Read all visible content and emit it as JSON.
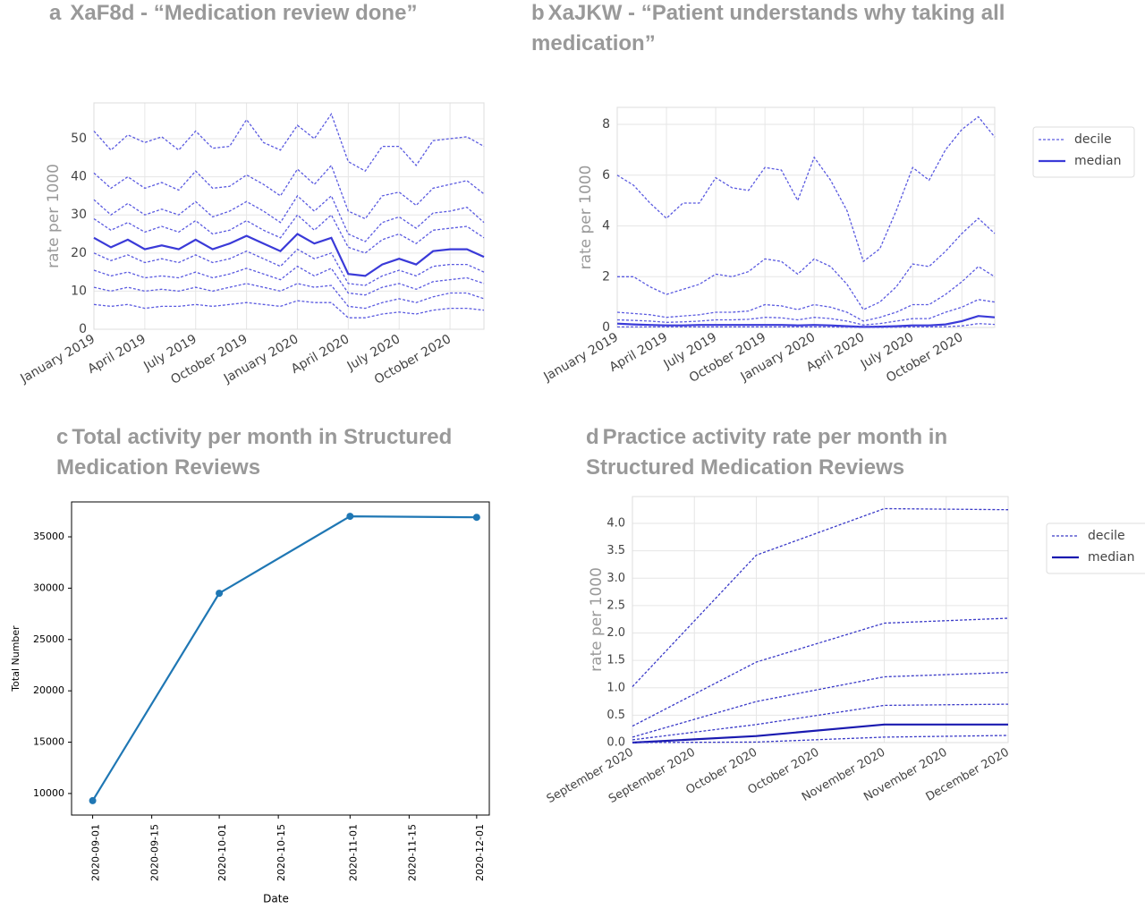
{
  "chart_data": [
    {
      "type": "line",
      "panel": "a",
      "title": "XaF8d - “Medication review done”",
      "ylabel": "rate per 1000",
      "categories": [
        "January 2019",
        null,
        null,
        "April 2019",
        null,
        null,
        "July 2019",
        null,
        null,
        "October 2019",
        null,
        null,
        "January 2020",
        null,
        null,
        "April 2020",
        null,
        null,
        "July 2020",
        null,
        null,
        "October 2020",
        null,
        null
      ],
      "ylim": [
        0,
        59.4
      ],
      "yticks": [
        0,
        10,
        20,
        30,
        40,
        50
      ],
      "grid": true,
      "series": [
        {
          "color": "#5a5ae0",
          "linestyle": "dashed",
          "values": [
            52,
            47,
            51,
            49,
            50.5,
            47,
            52,
            47.5,
            48,
            55,
            49,
            47,
            53.5,
            50,
            56.5,
            44,
            41.5,
            48,
            48,
            43,
            49.5,
            50,
            50.5,
            48
          ]
        },
        {
          "color": "#5a5ae0",
          "linestyle": "dashed",
          "values": [
            41,
            37,
            40,
            37,
            38.5,
            36.5,
            41.5,
            37,
            37.5,
            40.5,
            38,
            35,
            42,
            38,
            43,
            31,
            29,
            35,
            36,
            32.5,
            37,
            38,
            39,
            35.5
          ]
        },
        {
          "color": "#5a5ae0",
          "linestyle": "dashed",
          "values": [
            34,
            30,
            33,
            30,
            31.5,
            30,
            33.5,
            29.5,
            31,
            33.5,
            31,
            28,
            35,
            31,
            35,
            25,
            23,
            28,
            29.5,
            26.5,
            30.5,
            31,
            32,
            28
          ]
        },
        {
          "color": "#5a5ae0",
          "linestyle": "dashed",
          "values": [
            29,
            26,
            28,
            25.5,
            27,
            25.5,
            28.5,
            25,
            26,
            28.5,
            26,
            24,
            30,
            26,
            30,
            21.5,
            20,
            23.5,
            25,
            22.5,
            26,
            26.5,
            27,
            24
          ]
        },
        {
          "color": "#3a3ad8",
          "linestyle": "solid",
          "values": [
            24,
            21.5,
            23.5,
            21,
            22,
            21,
            23.5,
            21,
            22.5,
            24.5,
            22.5,
            20.5,
            25,
            22.5,
            24,
            14.5,
            14,
            17,
            18.5,
            17,
            20.5,
            21,
            21,
            19
          ]
        },
        {
          "color": "#5a5ae0",
          "linestyle": "dashed",
          "values": [
            20,
            18,
            19.5,
            17.5,
            18.5,
            17.5,
            19.5,
            17.5,
            18.5,
            20.5,
            18.5,
            16.5,
            21,
            18.5,
            20,
            12,
            11.5,
            14,
            15.5,
            14,
            16.5,
            17,
            17,
            15
          ]
        },
        {
          "color": "#5a5ae0",
          "linestyle": "dashed",
          "values": [
            15.5,
            14,
            15,
            13.5,
            14,
            13.5,
            15,
            13.5,
            14.5,
            16,
            14.5,
            13,
            16.5,
            14,
            16,
            9.5,
            9,
            11,
            12,
            10.5,
            12.5,
            13,
            13.5,
            12
          ]
        },
        {
          "color": "#5a5ae0",
          "linestyle": "dashed",
          "values": [
            11,
            10,
            11,
            10,
            10.5,
            10,
            11,
            10,
            11,
            12,
            11,
            10,
            12,
            11,
            11.5,
            6,
            5.5,
            7,
            8,
            7,
            8.5,
            9.5,
            9.5,
            8
          ]
        },
        {
          "color": "#5a5ae0",
          "linestyle": "dashed",
          "values": [
            6.5,
            6,
            6.5,
            5.5,
            6,
            6,
            6.5,
            6,
            6.5,
            7,
            6.5,
            6,
            7.5,
            7,
            7,
            3,
            3,
            4,
            4.5,
            4,
            5,
            5.5,
            5.5,
            5
          ]
        }
      ]
    },
    {
      "type": "line",
      "panel": "b",
      "title": "XaJKW - “Patient understands why taking all medication”",
      "ylabel": "rate per 1000",
      "categories": [
        "January 2019",
        null,
        null,
        "April 2019",
        null,
        null,
        "July 2019",
        null,
        null,
        "October 2019",
        null,
        null,
        "January 2020",
        null,
        null,
        "April 2020",
        null,
        null,
        "July 2020",
        null,
        null,
        "October 2020",
        null,
        null
      ],
      "ylim": [
        0,
        8.67
      ],
      "yticks": [
        0,
        2,
        4,
        6,
        8
      ],
      "grid": true,
      "legend": "right",
      "series": [
        {
          "name": "decile",
          "color": "#5a5ae0",
          "linestyle": "dashed",
          "values": [
            6,
            5.6,
            4.9,
            4.3,
            4.9,
            4.9,
            5.9,
            5.5,
            5.4,
            6.3,
            6.2,
            5,
            6.7,
            5.8,
            4.6,
            2.6,
            3.1,
            4.6,
            6.3,
            5.8,
            7,
            7.8,
            8.3,
            7.5
          ]
        },
        {
          "color": "#5a5ae0",
          "linestyle": "dashed",
          "values": [
            2,
            2,
            1.6,
            1.3,
            1.5,
            1.7,
            2.1,
            2,
            2.2,
            2.7,
            2.6,
            2.1,
            2.7,
            2.4,
            1.7,
            0.7,
            1,
            1.6,
            2.5,
            2.4,
            3,
            3.7,
            4.3,
            3.7
          ]
        },
        {
          "color": "#5a5ae0",
          "linestyle": "dashed",
          "values": [
            0.6,
            0.55,
            0.5,
            0.4,
            0.45,
            0.5,
            0.6,
            0.6,
            0.65,
            0.9,
            0.85,
            0.7,
            0.9,
            0.8,
            0.6,
            0.25,
            0.4,
            0.6,
            0.9,
            0.9,
            1.3,
            1.8,
            2.4,
            2.0
          ]
        },
        {
          "color": "#5a5ae0",
          "linestyle": "dashed",
          "values": [
            0.3,
            0.28,
            0.25,
            0.2,
            0.22,
            0.25,
            0.3,
            0.3,
            0.32,
            0.4,
            0.38,
            0.3,
            0.4,
            0.35,
            0.25,
            0.1,
            0.15,
            0.25,
            0.35,
            0.35,
            0.6,
            0.8,
            1.1,
            1.0
          ]
        },
        {
          "name": "median",
          "color": "#3a3ad8",
          "linestyle": "solid",
          "values": [
            0.15,
            0.12,
            0.1,
            0.08,
            0.08,
            0.1,
            0.1,
            0.1,
            0.1,
            0.1,
            0.1,
            0.08,
            0.1,
            0.08,
            0.05,
            0.02,
            0.03,
            0.05,
            0.08,
            0.08,
            0.12,
            0.25,
            0.45,
            0.4
          ]
        },
        {
          "color": "#5a5ae0",
          "linestyle": "dashed",
          "values": [
            0.02,
            0.02,
            0.02,
            0.02,
            0.02,
            0.02,
            0.02,
            0.02,
            0.02,
            0.02,
            0.02,
            0.02,
            0.02,
            0.02,
            0.01,
            0,
            0,
            0.01,
            0.02,
            0.02,
            0.03,
            0.06,
            0.15,
            0.12
          ]
        }
      ]
    },
    {
      "type": "line",
      "panel": "c",
      "title": "Total activity per month in Structured Medication Reviews",
      "xlabel": "Date",
      "ylabel": "Total Number",
      "x": [
        "2020-09-01",
        "2020-10-01",
        "2020-11-01",
        "2020-12-01"
      ],
      "xlim": [
        "2020-08-27",
        "2020-12-04"
      ],
      "xticks": [
        "2020-09-01",
        "2020-09-15",
        "2020-10-01",
        "2020-10-15",
        "2020-11-01",
        "2020-11-15",
        "2020-12-01"
      ],
      "ylim": [
        7900,
        38400
      ],
      "yticks": [
        10000,
        15000,
        20000,
        25000,
        30000,
        35000
      ],
      "grid": false,
      "marker": "o",
      "series": [
        {
          "color": "#1f77b4",
          "linestyle": "solid",
          "values": [
            9300,
            29500,
            37000,
            36900
          ]
        }
      ]
    },
    {
      "type": "line",
      "panel": "d",
      "title": "Practice activity rate per month in Structured Medication Reviews",
      "ylabel": "rate per 1000",
      "x": [
        "2020-09-01",
        "2020-10-01",
        "2020-11-01",
        "2020-12-01"
      ],
      "xlim": [
        "2020-09-01",
        "2020-12-01"
      ],
      "xticks": [
        {
          "value": "2020-09-01",
          "label": "September 2020"
        },
        {
          "value": "2020-09-16",
          "label": "September 2020"
        },
        {
          "value": "2020-10-01",
          "label": "October 2020"
        },
        {
          "value": "2020-10-16",
          "label": "October 2020"
        },
        {
          "value": "2020-11-01",
          "label": "November 2020"
        },
        {
          "value": "2020-11-16",
          "label": "November 2020"
        },
        {
          "value": "2020-12-01",
          "label": "December 2020"
        }
      ],
      "ylim": [
        0,
        4.49
      ],
      "yticks": [
        {
          "value": 0,
          "label": "0.0"
        },
        0.5,
        {
          "value": 1,
          "label": "1.0"
        },
        1.5,
        {
          "value": 2,
          "label": "2.0"
        },
        2.5,
        {
          "value": 3,
          "label": "3.0"
        },
        3.5,
        {
          "value": 4,
          "label": "4.0"
        }
      ],
      "grid": true,
      "legend": "right",
      "series": [
        {
          "name": "decile",
          "color": "#3a3ac8",
          "linestyle": "dashed",
          "values": [
            1.02,
            3.42,
            4.27,
            4.25
          ]
        },
        {
          "color": "#3a3ac8",
          "linestyle": "dashed",
          "values": [
            0.3,
            1.47,
            2.18,
            2.27
          ]
        },
        {
          "color": "#3a3ac8",
          "linestyle": "dashed",
          "values": [
            0.1,
            0.75,
            1.2,
            1.28
          ]
        },
        {
          "color": "#3a3ac8",
          "linestyle": "dashed",
          "values": [
            0.05,
            0.33,
            0.68,
            0.7
          ]
        },
        {
          "name": "median",
          "color": "#1a1ab0",
          "linestyle": "solid",
          "values": [
            0,
            0.12,
            0.33,
            0.33
          ]
        },
        {
          "color": "#3a3ac8",
          "linestyle": "dashed",
          "values": [
            0,
            0.01,
            0.1,
            0.13
          ]
        }
      ]
    }
  ]
}
